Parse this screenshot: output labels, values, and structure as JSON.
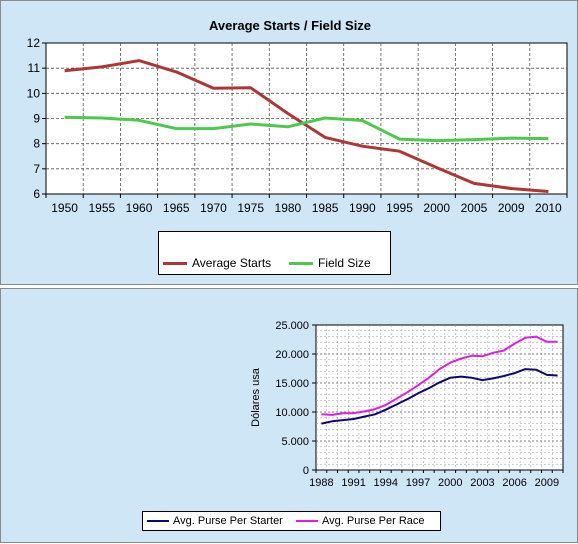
{
  "chart_data": [
    {
      "type": "line",
      "title": "Average Starts / Field Size",
      "xlabel": "",
      "ylabel": "",
      "categories": [
        "1950",
        "1955",
        "1960",
        "1965",
        "1970",
        "1975",
        "1980",
        "1985",
        "1990",
        "1995",
        "2000",
        "2005",
        "2009",
        "2010"
      ],
      "ylim": [
        6,
        12
      ],
      "yticks": [
        "6",
        "7",
        "8",
        "9",
        "10",
        "11",
        "12"
      ],
      "grid": true,
      "legend_position": "bottom",
      "series": [
        {
          "name": "Average Starts",
          "color": "#b03535",
          "values": [
            10.9,
            11.05,
            11.3,
            10.85,
            10.2,
            10.22,
            9.2,
            8.25,
            7.9,
            7.7,
            7.05,
            6.42,
            6.22,
            6.1
          ]
        },
        {
          "name": "Field Size",
          "color": "#4ec94e",
          "values": [
            9.05,
            9.02,
            8.93,
            8.6,
            8.6,
            8.78,
            8.67,
            9.02,
            8.92,
            8.18,
            8.12,
            8.16,
            8.22,
            8.2
          ]
        }
      ]
    },
    {
      "type": "line",
      "title": "",
      "xlabel": "",
      "ylabel": "Dólares usa",
      "x": [
        1988,
        1989,
        1990,
        1991,
        1992,
        1993,
        1994,
        1995,
        1996,
        1997,
        1998,
        1999,
        2000,
        2001,
        2002,
        2003,
        2004,
        2005,
        2006,
        2007,
        2008,
        2009,
        2010
      ],
      "xticks": [
        "1988",
        "1991",
        "1994",
        "1997",
        "2000",
        "2003",
        "2006",
        "2009"
      ],
      "ylim": [
        0,
        25000
      ],
      "yticks": [
        "0",
        "5.000",
        "10.000",
        "15.000",
        "20.000",
        "25.000"
      ],
      "grid": true,
      "legend_position": "bottom",
      "series": [
        {
          "name": "Avg. Purse Per Starter",
          "color": "#0d0a6e",
          "values": [
            8000,
            8400,
            8600,
            8800,
            9200,
            9600,
            10400,
            11300,
            12200,
            13200,
            14100,
            15100,
            15900,
            16100,
            15900,
            15500,
            15800,
            16200,
            16700,
            17400,
            17300,
            16400,
            16300
          ]
        },
        {
          "name": "Avg. Purse Per Race",
          "color": "#e11de1",
          "values": [
            9600,
            9500,
            9800,
            9800,
            10100,
            10500,
            11200,
            12300,
            13400,
            14600,
            15900,
            17400,
            18500,
            19200,
            19700,
            19600,
            20200,
            20600,
            21800,
            22800,
            23000,
            22100,
            22100
          ]
        }
      ]
    }
  ]
}
